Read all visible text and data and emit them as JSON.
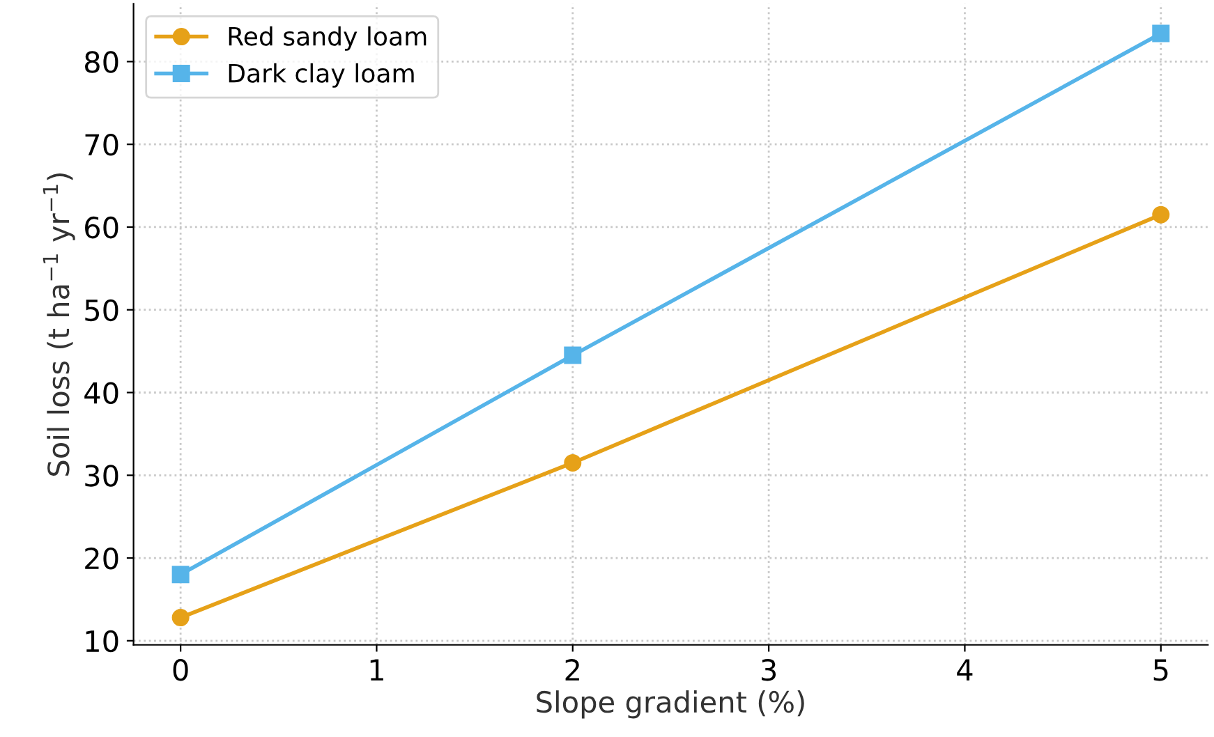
{
  "chart_data": {
    "type": "line",
    "xlabel": "Slope gradient (%)",
    "ylabel": "Soil loss (t ha$^{−1}$ yr$^{−1}$)",
    "x": [
      0,
      2,
      5
    ],
    "series": [
      {
        "name": "Red sandy loam",
        "color": "#e6a118",
        "marker": "circle",
        "values": [
          12.8,
          31.5,
          61.5
        ]
      },
      {
        "name": "Dark clay loam",
        "color": "#56b4e9",
        "marker": "square",
        "values": [
          18,
          44.5,
          83.4
        ]
      }
    ],
    "xlim": [
      -0.24,
      5.24
    ],
    "ylim": [
      9.5,
      87
    ],
    "xticks": [
      0,
      1,
      2,
      3,
      4,
      5
    ],
    "yticks": [
      10,
      20,
      30,
      40,
      50,
      60,
      70,
      80
    ],
    "grid": true,
    "legend": "top left",
    "line_style": "solid"
  }
}
